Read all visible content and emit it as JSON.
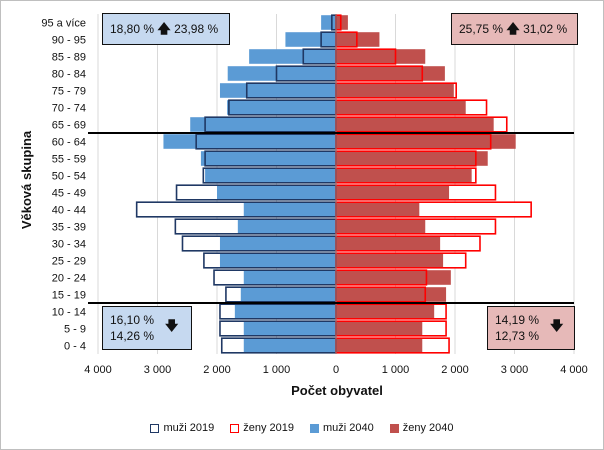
{
  "chart_data": {
    "type": "bar",
    "orientation": "horizontal-population-pyramid",
    "xlabel": "Počet obyvatel",
    "ylabel": "Věková skupina",
    "xlim": [
      -4000,
      4000
    ],
    "x_ticks": [
      -4000,
      -3000,
      -2000,
      -1000,
      0,
      1000,
      2000,
      3000,
      4000
    ],
    "x_tick_labels": [
      "4 000",
      "3 000",
      "2 000",
      "1 000",
      "0",
      "1 000",
      "2 000",
      "3 000",
      "4 000"
    ],
    "categories": [
      "0 - 4",
      "5 - 9",
      "10 - 14",
      "15 - 19",
      "20 - 24",
      "25 - 29",
      "30 - 34",
      "35 - 39",
      "40 - 44",
      "45 - 49",
      "50 - 54",
      "55 - 59",
      "60 - 64",
      "65 - 69",
      "70 - 74",
      "75 - 79",
      "80 - 84",
      "85 - 89",
      "90 - 95",
      "95 a více"
    ],
    "series": [
      {
        "name": "muži 2019",
        "side": "left",
        "style": "outline",
        "color": "#1f3864",
        "values": [
          1920,
          1950,
          1950,
          1850,
          2050,
          2220,
          2580,
          2700,
          3350,
          2680,
          2230,
          2200,
          2350,
          2200,
          1800,
          1500,
          1000,
          550,
          250,
          70
        ]
      },
      {
        "name": "ženy 2019",
        "side": "right",
        "style": "outline",
        "color": "#ff0000",
        "values": [
          1900,
          1850,
          1850,
          1500,
          1520,
          2180,
          2420,
          2680,
          3280,
          2680,
          2350,
          2350,
          2600,
          2870,
          2530,
          2020,
          1450,
          1000,
          350,
          80
        ]
      },
      {
        "name": "muži 2040",
        "side": "left",
        "style": "fill",
        "color": "#5b9bd5",
        "values": [
          1550,
          1550,
          1700,
          1600,
          1550,
          1950,
          1950,
          1650,
          1550,
          2000,
          2200,
          2270,
          2900,
          2450,
          1830,
          1950,
          1820,
          1460,
          850,
          250
        ]
      },
      {
        "name": "ženy 2040",
        "side": "right",
        "style": "fill",
        "color": "#c0504d",
        "values": [
          1450,
          1450,
          1650,
          1850,
          1930,
          1800,
          1750,
          1500,
          1400,
          1900,
          2280,
          2550,
          3020,
          2650,
          2180,
          1980,
          1830,
          1500,
          730,
          200
        ]
      }
    ],
    "reference_lines": [
      {
        "between": [
          "10 - 14",
          "15 - 19"
        ]
      },
      {
        "between": [
          "60 - 64",
          "65 - 69"
        ]
      }
    ],
    "legend_position": "bottom",
    "grid": "vertical"
  },
  "annotations": {
    "top_left": {
      "value_2019": "18,80 %",
      "value_2040": "23,98 %",
      "direction": "up"
    },
    "top_right": {
      "value_2019": "25,75 %",
      "value_2040": "31,02 %",
      "direction": "up"
    },
    "bottom_left": {
      "value_2019": "16,10 %",
      "value_2040": "14,26 %",
      "direction": "down"
    },
    "bottom_right": {
      "value_2019": "14,19 %",
      "value_2040": "12,73 %",
      "direction": "down"
    }
  },
  "colors": {
    "box_blue": "#c6d9f0",
    "box_red": "#e6b9b8",
    "grid": "#d9d9d9",
    "axis_line": "#000000"
  },
  "icons": {
    "up": "arrow-up-icon",
    "down": "arrow-down-icon"
  }
}
